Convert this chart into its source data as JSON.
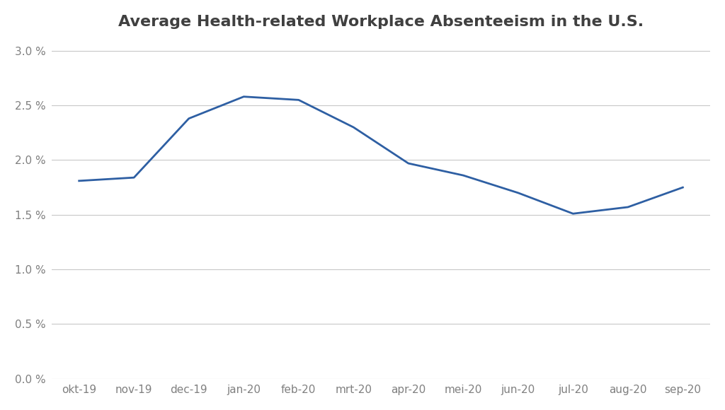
{
  "title": "Average Health-related Workplace Absenteeism in the U.S.",
  "categories": [
    "okt-19",
    "nov-19",
    "dec-19",
    "jan-20",
    "feb-20",
    "mrt-20",
    "apr-20",
    "mei-20",
    "jun-20",
    "jul-20",
    "aug-20",
    "sep-20"
  ],
  "values": [
    0.0181,
    0.0184,
    0.0238,
    0.0258,
    0.0255,
    0.023,
    0.0197,
    0.0186,
    0.017,
    0.0151,
    0.0157,
    0.0175
  ],
  "line_color": "#2E5FA3",
  "line_width": 2.0,
  "background_color": "#ffffff",
  "grid_color": "#c8c8c8",
  "title_fontsize": 16,
  "title_color": "#404040",
  "tick_fontsize": 11,
  "tick_color": "#808080",
  "ylim": [
    0.0,
    0.031
  ],
  "yticks": [
    0.0,
    0.005,
    0.01,
    0.015,
    0.02,
    0.025,
    0.03
  ],
  "ytick_labels": [
    "0.0 %",
    "0.5 %",
    "1.0 %",
    "1.5 %",
    "2.0 %",
    "2.5 %",
    "3.0 %"
  ]
}
